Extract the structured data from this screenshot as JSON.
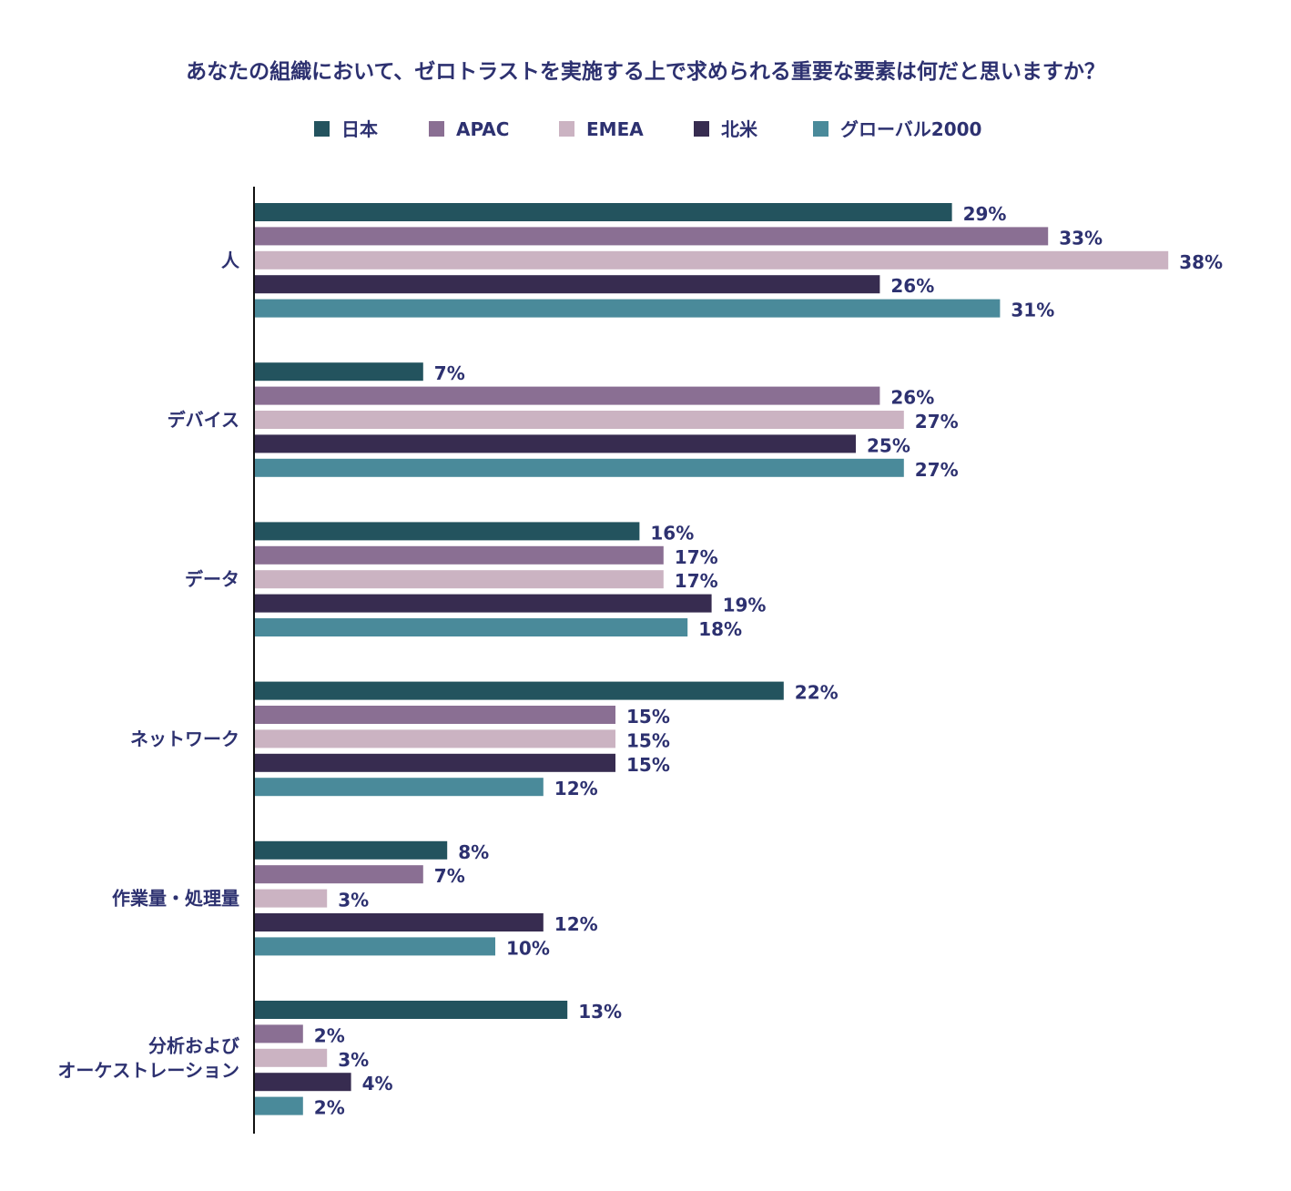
{
  "chart_data": {
    "type": "bar",
    "orientation": "horizontal",
    "title": "あなたの組織において、ゼロトラストを実施する上で求められる重要な要素は何だと思いますか？",
    "categories": [
      "人",
      "デバイス",
      "データ",
      "ネットワーク",
      "作業量・処理量",
      "分析および\nオーケストレーション"
    ],
    "series": [
      {
        "name": "日本",
        "color": "#23535e",
        "values": [
          29,
          7,
          16,
          22,
          8,
          13
        ]
      },
      {
        "name": "APAC",
        "color": "#8a6f93",
        "values": [
          33,
          26,
          17,
          15,
          7,
          2
        ]
      },
      {
        "name": "EMEA",
        "color": "#cbb3c2",
        "values": [
          38,
          27,
          17,
          15,
          3,
          3
        ]
      },
      {
        "name": "北米",
        "color": "#372c50",
        "values": [
          26,
          25,
          19,
          15,
          12,
          4
        ]
      },
      {
        "name": "グローバル2000",
        "color": "#4a8a9a",
        "values": [
          31,
          27,
          18,
          12,
          10,
          2
        ]
      }
    ],
    "value_suffix": "%",
    "xlim": [
      0,
      38
    ],
    "legend": "top-center",
    "grid": false,
    "text_color": "#2d3170"
  }
}
